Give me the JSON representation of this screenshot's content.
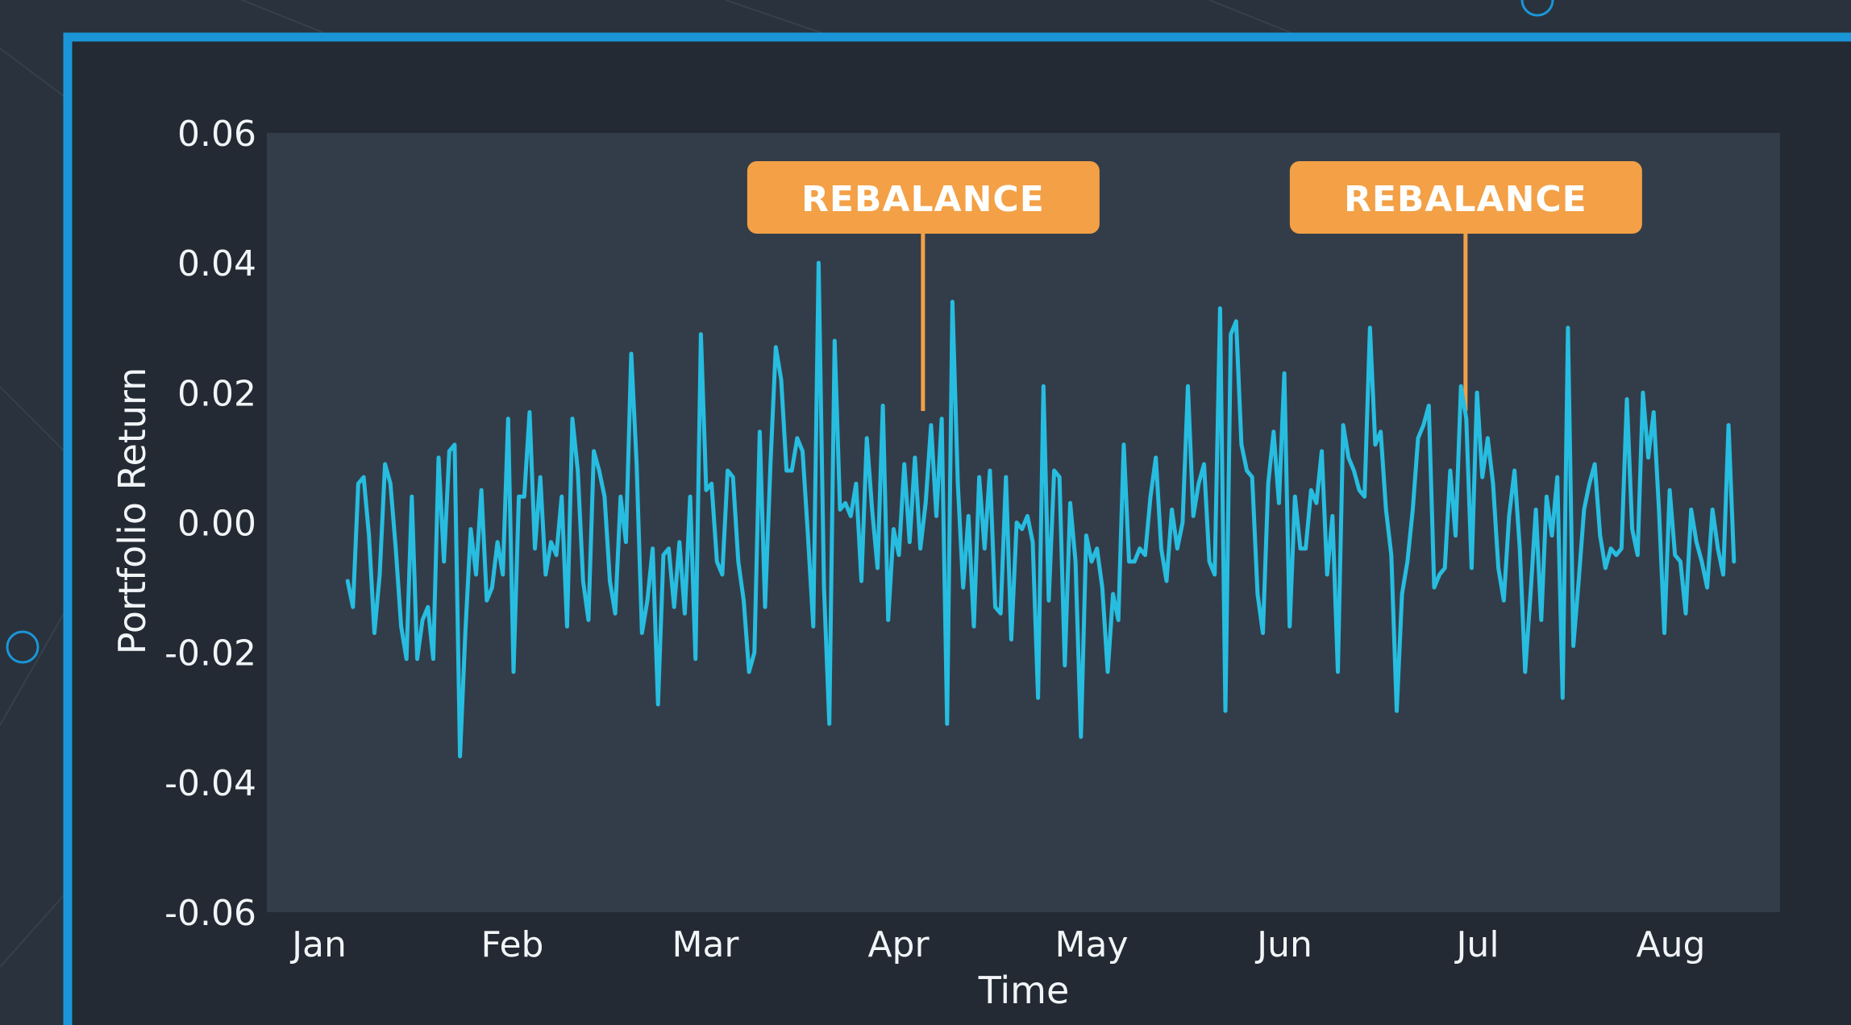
{
  "colors": {
    "background": "#2a323d",
    "panel": "#232a33",
    "plot_area": "#333d49",
    "frame_accent": "#1a96d8",
    "series_line": "#27bde0",
    "callout": "#f3a046",
    "text": "#f2f5f8"
  },
  "chart_data": {
    "type": "line",
    "title": "",
    "xlabel": "Time",
    "ylabel": "Portfolio Return",
    "ylim": [
      -0.06,
      0.06
    ],
    "yticks": [
      "0.06",
      "0.04",
      "0.02",
      "0.00",
      "-0.02",
      "-0.04",
      "-0.06"
    ],
    "xlim": [
      0,
      7.5
    ],
    "xticks": [
      "Jan",
      "Feb",
      "Mar",
      "Apr",
      "May",
      "Jun",
      "Jul",
      "Aug"
    ],
    "grid": false,
    "legend": "none",
    "annotations": [
      {
        "label": "REBALANCE",
        "x": 3.06
      },
      {
        "label": "REBALANCE",
        "x": 5.87
      }
    ],
    "series": [
      {
        "values": [
          -0.009,
          -0.013,
          0.006,
          0.007,
          -0.002,
          -0.017,
          -0.008,
          0.009,
          0.006,
          -0.004,
          -0.016,
          -0.021,
          0.004,
          -0.021,
          -0.015,
          -0.013,
          -0.021,
          0.01,
          -0.006,
          0.011,
          0.012,
          -0.036,
          -0.017,
          -0.001,
          -0.008,
          0.005,
          -0.012,
          -0.01,
          -0.003,
          -0.008,
          0.016,
          -0.023,
          0.004,
          0.004,
          0.017,
          -0.004,
          0.007,
          -0.008,
          -0.003,
          -0.005,
          0.004,
          -0.016,
          0.016,
          0.008,
          -0.009,
          -0.015,
          0.011,
          0.008,
          0.004,
          -0.009,
          -0.014,
          0.004,
          -0.003,
          0.026,
          0.009,
          -0.017,
          -0.012,
          -0.004,
          -0.028,
          -0.005,
          -0.004,
          -0.013,
          -0.003,
          -0.014,
          0.004,
          -0.021,
          0.029,
          0.005,
          0.006,
          -0.006,
          -0.008,
          0.008,
          0.007,
          -0.006,
          -0.012,
          -0.023,
          -0.02,
          0.014,
          -0.013,
          0.009,
          0.027,
          0.022,
          0.008,
          0.008,
          0.013,
          0.011,
          -0.002,
          -0.016,
          0.04,
          -0.01,
          -0.031,
          0.028,
          0.002,
          0.003,
          0.001,
          0.006,
          -0.009,
          0.013,
          0.002,
          -0.007,
          0.018,
          -0.015,
          -0.001,
          -0.005,
          0.009,
          -0.003,
          0.01,
          -0.004,
          0.003,
          0.015,
          0.001,
          0.016,
          -0.031,
          0.034,
          0.006,
          -0.01,
          0.001,
          -0.016,
          0.007,
          -0.004,
          0.008,
          -0.013,
          -0.014,
          0.007,
          -0.018,
          0.0,
          -0.001,
          0.001,
          -0.003,
          -0.027,
          0.021,
          -0.012,
          0.008,
          0.007,
          -0.022,
          0.003,
          -0.006,
          -0.033,
          -0.002,
          -0.006,
          -0.004,
          -0.01,
          -0.023,
          -0.011,
          -0.015,
          0.012,
          -0.006,
          -0.006,
          -0.004,
          -0.005,
          0.004,
          0.01,
          -0.004,
          -0.009,
          0.002,
          -0.004,
          0.0,
          0.021,
          0.001,
          0.006,
          0.009,
          -0.006,
          -0.008,
          0.033,
          -0.029,
          0.029,
          0.031,
          0.012,
          0.008,
          0.007,
          -0.011,
          -0.017,
          0.006,
          0.014,
          0.003,
          0.023,
          -0.016,
          0.004,
          -0.004,
          -0.004,
          0.005,
          0.003,
          0.011,
          -0.008,
          0.001,
          -0.023,
          0.015,
          0.01,
          0.008,
          0.005,
          0.004,
          0.03,
          0.012,
          0.014,
          0.002,
          -0.005,
          -0.029,
          -0.011,
          -0.006,
          0.002,
          0.013,
          0.015,
          0.018,
          -0.01,
          -0.008,
          -0.007,
          0.008,
          -0.002,
          0.021,
          0.016,
          -0.007,
          0.02,
          0.007,
          0.013,
          0.006,
          -0.007,
          -0.012,
          0.001,
          0.008,
          -0.004,
          -0.023,
          -0.011,
          0.002,
          -0.015,
          0.004,
          -0.002,
          0.007,
          -0.027,
          0.03,
          -0.019,
          -0.009,
          0.002,
          0.006,
          0.009,
          -0.002,
          -0.007,
          -0.004,
          -0.005,
          -0.004,
          0.019,
          -0.001,
          -0.005,
          0.02,
          0.01,
          0.017,
          0.002,
          -0.017,
          0.005,
          -0.005,
          -0.006,
          -0.014,
          0.002,
          -0.003,
          -0.006,
          -0.01,
          0.002,
          -0.004,
          -0.008,
          0.015,
          -0.006
        ]
      }
    ]
  }
}
